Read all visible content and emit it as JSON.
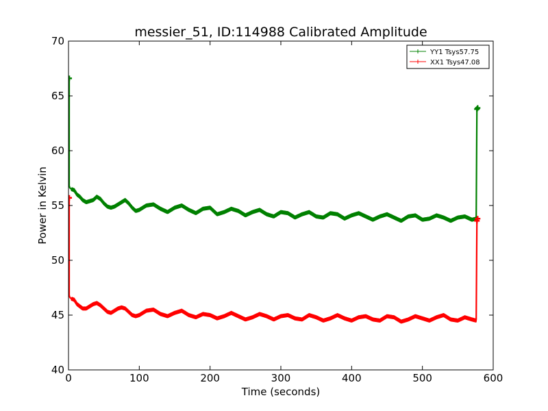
{
  "chart_data": {
    "type": "line",
    "title": "messier_51, ID:114988 Calibrated Amplitude",
    "xlabel": "Time (seconds)",
    "ylabel": "Power in Kelvin",
    "xlim": [
      0,
      600
    ],
    "ylim": [
      40,
      70
    ],
    "xticks": [
      0,
      100,
      200,
      300,
      400,
      500,
      600
    ],
    "yticks": [
      40,
      45,
      50,
      55,
      60,
      65,
      70
    ],
    "grid": false,
    "legend_position": "top-right",
    "series": [
      {
        "name": "YY1 Tsys57.75",
        "color": "#008000",
        "marker": "+",
        "x": [
          1,
          1,
          2,
          4,
          8,
          12,
          16,
          20,
          25,
          30,
          35,
          40,
          45,
          50,
          55,
          60,
          65,
          70,
          75,
          80,
          85,
          90,
          95,
          100,
          110,
          120,
          130,
          140,
          150,
          160,
          170,
          180,
          190,
          200,
          210,
          220,
          230,
          240,
          250,
          260,
          270,
          280,
          290,
          300,
          310,
          320,
          330,
          340,
          350,
          360,
          370,
          380,
          390,
          400,
          410,
          420,
          430,
          440,
          450,
          460,
          470,
          480,
          490,
          500,
          510,
          520,
          530,
          540,
          550,
          560,
          570,
          576,
          577,
          578
        ],
        "y": [
          66.6,
          56.8,
          56.6,
          56.5,
          56.4,
          56.0,
          55.8,
          55.5,
          55.3,
          55.4,
          55.5,
          55.8,
          55.6,
          55.2,
          54.9,
          54.8,
          54.9,
          55.1,
          55.3,
          55.5,
          55.2,
          54.8,
          54.5,
          54.6,
          55.0,
          55.1,
          54.7,
          54.4,
          54.8,
          55.0,
          54.6,
          54.3,
          54.7,
          54.8,
          54.2,
          54.4,
          54.7,
          54.5,
          54.1,
          54.4,
          54.6,
          54.2,
          54.0,
          54.4,
          54.3,
          53.9,
          54.2,
          54.4,
          54.0,
          53.9,
          54.3,
          54.2,
          53.8,
          54.1,
          54.3,
          54.0,
          53.7,
          54.0,
          54.2,
          53.9,
          53.6,
          54.0,
          54.1,
          53.7,
          53.8,
          54.1,
          53.9,
          53.6,
          53.9,
          54.0,
          53.7,
          53.8,
          63.8,
          63.9
        ]
      },
      {
        "name": "XX1 Tsys47.08",
        "color": "#ff0000",
        "marker": "+",
        "x": [
          1,
          1,
          2,
          4,
          8,
          12,
          16,
          20,
          25,
          30,
          35,
          40,
          45,
          50,
          55,
          60,
          65,
          70,
          75,
          80,
          85,
          90,
          95,
          100,
          110,
          120,
          130,
          140,
          150,
          160,
          170,
          180,
          190,
          200,
          210,
          220,
          230,
          240,
          250,
          260,
          270,
          280,
          290,
          300,
          310,
          320,
          330,
          340,
          350,
          360,
          370,
          380,
          390,
          400,
          410,
          420,
          430,
          440,
          450,
          460,
          470,
          480,
          490,
          500,
          510,
          520,
          530,
          540,
          550,
          560,
          570,
          576,
          577,
          578
        ],
        "y": [
          55.7,
          46.8,
          46.6,
          46.5,
          46.4,
          46.0,
          45.8,
          45.6,
          45.6,
          45.8,
          46.0,
          46.1,
          45.9,
          45.6,
          45.3,
          45.2,
          45.4,
          45.6,
          45.7,
          45.6,
          45.3,
          45.0,
          44.9,
          45.0,
          45.4,
          45.5,
          45.1,
          44.9,
          45.2,
          45.4,
          45.0,
          44.8,
          45.1,
          45.0,
          44.7,
          44.9,
          45.2,
          44.9,
          44.6,
          44.8,
          45.1,
          44.9,
          44.6,
          44.9,
          45.0,
          44.7,
          44.6,
          45.0,
          44.8,
          44.5,
          44.7,
          45.0,
          44.7,
          44.5,
          44.8,
          44.9,
          44.6,
          44.5,
          44.9,
          44.8,
          44.4,
          44.6,
          44.9,
          44.7,
          44.5,
          44.8,
          45.0,
          44.6,
          44.5,
          44.8,
          44.6,
          44.5,
          53.6,
          53.8
        ]
      }
    ]
  }
}
